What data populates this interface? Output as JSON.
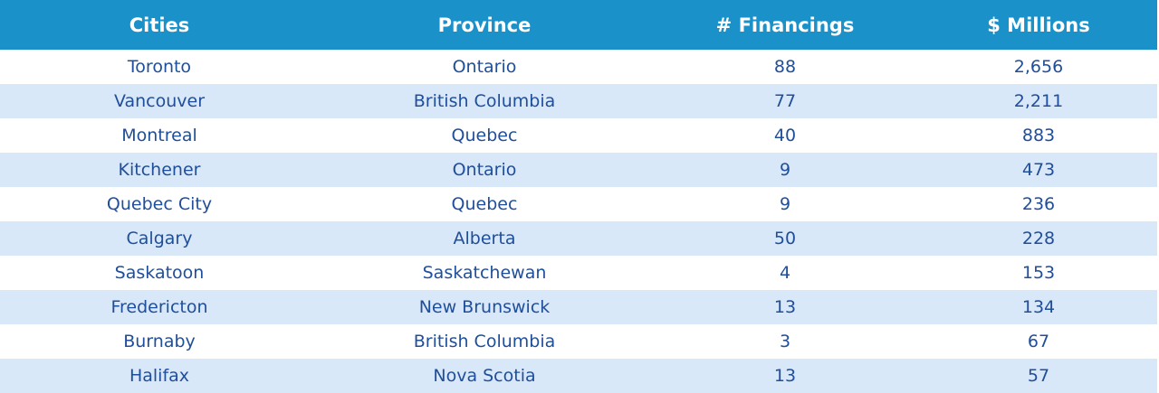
{
  "table": {
    "header": [
      "Cities",
      "Province",
      "# Financings",
      "$ Millions"
    ],
    "rows": [
      [
        "Toronto",
        "Ontario",
        "88",
        "2,656"
      ],
      [
        "Vancouver",
        "British Columbia",
        "77",
        "2,211"
      ],
      [
        "Montreal",
        "Quebec",
        "40",
        "883"
      ],
      [
        "Kitchener",
        "Ontario",
        "9",
        "473"
      ],
      [
        "Quebec City",
        "Quebec",
        "9",
        "236"
      ],
      [
        "Calgary",
        "Alberta",
        "50",
        "228"
      ],
      [
        "Saskatoon",
        "Saskatchewan",
        "4",
        "153"
      ],
      [
        "Fredericton",
        "New Brunswick",
        "13",
        "134"
      ],
      [
        "Burnaby",
        "British Columbia",
        "3",
        "67"
      ],
      [
        "Halifax",
        "Nova Scotia",
        "13",
        "57"
      ]
    ]
  }
}
